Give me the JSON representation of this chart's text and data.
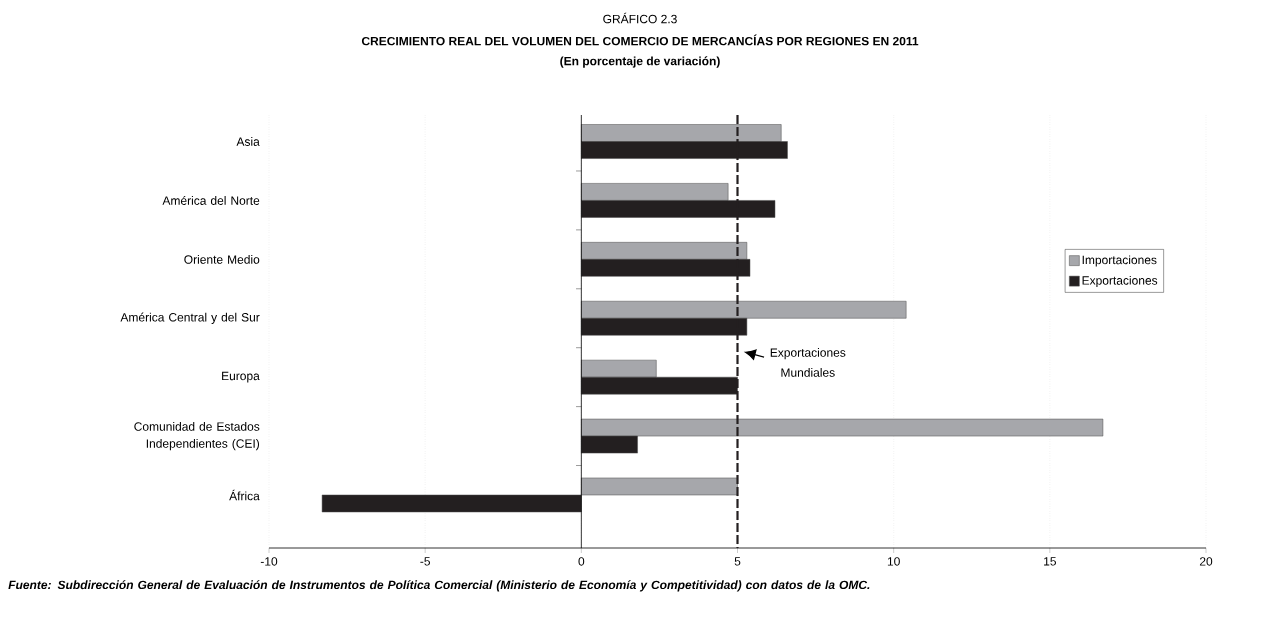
{
  "chart_data": {
    "type": "bar",
    "orientation": "horizontal",
    "title": "CRECIMIENTO REAL DEL VOLUMEN DEL COMERCIO DE MERCANCÍAS POR REGIONES EN 2011",
    "subtitle": "(En porcentaje de variación)",
    "annotations": [
      "GRÁFICO 2.3",
      "Fuente: Subdirección General de Evaluación de Instrumentos de Política Comercial (Ministerio de Economía y Competitividad) con datos de la OMC."
    ],
    "categories": [
      "Asia",
      "América del Norte",
      "Oriente Medio",
      "América Central y del Sur",
      "Europa",
      "Comunidad de Estados Independientes (CEI)",
      "África"
    ],
    "series": [
      {
        "name": "Importaciones",
        "color": "#a6a7ab",
        "values": [
          6.4,
          4.7,
          5.3,
          10.4,
          2.4,
          16.7,
          5.0
        ]
      },
      {
        "name": "Exportaciones",
        "color": "#231f20",
        "values": [
          6.6,
          6.2,
          5.4,
          5.3,
          5.0,
          1.8,
          -8.3
        ]
      }
    ],
    "xlim": [
      -10,
      20
    ],
    "xticks": [
      -10,
      -5,
      0,
      5,
      10,
      15,
      20
    ],
    "grid": "x",
    "legend": "right",
    "ref_lines": [
      {
        "axis": "x",
        "value": 5,
        "label": "Exportaciones Mundiales",
        "color": "#231f20",
        "line_style": "dashed"
      }
    ]
  }
}
